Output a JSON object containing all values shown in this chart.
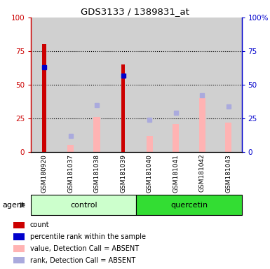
{
  "title": "GDS3133 / 1389831_at",
  "samples": [
    "GSM180920",
    "GSM181037",
    "GSM181038",
    "GSM181039",
    "GSM181040",
    "GSM181041",
    "GSM181042",
    "GSM181043"
  ],
  "red_bars": [
    80,
    0,
    0,
    65,
    0,
    0,
    0,
    0
  ],
  "blue_squares": [
    63,
    0,
    0,
    57,
    0,
    0,
    0,
    0
  ],
  "pink_bars": [
    0,
    5,
    26,
    0,
    12,
    21,
    40,
    22
  ],
  "lavender_squares": [
    0,
    12,
    35,
    0,
    24,
    29,
    42,
    34
  ],
  "ylim": [
    0,
    100
  ],
  "yticks": [
    0,
    25,
    50,
    75,
    100
  ],
  "ytick_labels_left": [
    "0",
    "25",
    "50",
    "75",
    "100"
  ],
  "ytick_labels_right": [
    "0",
    "25",
    "50",
    "75",
    "100%"
  ],
  "left_axis_color": "#cc0000",
  "right_axis_color": "#0000cc",
  "red_bar_color": "#cc0000",
  "blue_sq_color": "#0000cc",
  "pink_bar_color": "#ffb3b3",
  "lavender_sq_color": "#aaaadd",
  "ctrl_color_light": "#ccffcc",
  "ctrl_color_dark": "#33dd33",
  "bg_col": "#d0d0d0",
  "legend_labels": [
    "count",
    "percentile rank within the sample",
    "value, Detection Call = ABSENT",
    "rank, Detection Call = ABSENT"
  ],
  "legend_colors": [
    "#cc0000",
    "#0000cc",
    "#ffb3b3",
    "#aaaadd"
  ],
  "agent_label": "agent",
  "control_label": "control",
  "quercetin_label": "quercetin"
}
